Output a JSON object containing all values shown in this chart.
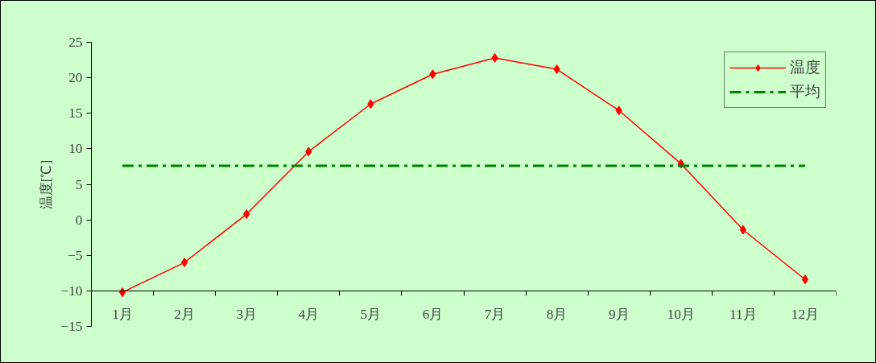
{
  "chart_data": {
    "type": "line",
    "ylabel": "温度[℃]",
    "categories": [
      "1月",
      "2月",
      "3月",
      "4月",
      "5月",
      "6月",
      "7月",
      "8月",
      "9月",
      "10月",
      "11月",
      "12月"
    ],
    "series": [
      {
        "name": "温度",
        "color": "#ff0000",
        "marker": "diamond",
        "line_style": "solid",
        "values": [
          -10.2,
          -6.0,
          0.8,
          9.6,
          16.3,
          20.5,
          22.8,
          21.2,
          15.4,
          7.9,
          -1.4,
          -8.4
        ]
      },
      {
        "name": "平均",
        "color": "#008000",
        "marker": "none",
        "line_style": "dashed",
        "values": [
          7.6,
          7.6,
          7.6,
          7.6,
          7.6,
          7.6,
          7.6,
          7.6,
          7.6,
          7.6,
          7.6,
          7.6
        ]
      }
    ],
    "ylim": [
      -15,
      25
    ],
    "yticks": [
      -15,
      -10,
      -5,
      0,
      5,
      10,
      15,
      20,
      25
    ],
    "grid": false,
    "legend": "top right"
  }
}
